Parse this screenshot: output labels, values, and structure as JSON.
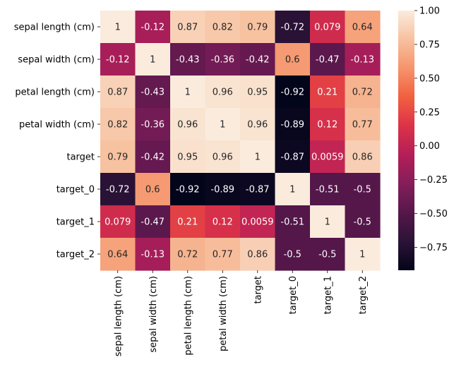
{
  "chart_data": {
    "type": "heatmap",
    "title": "",
    "xlabel": "",
    "ylabel": "",
    "rows": [
      "sepal length (cm)",
      "sepal width (cm)",
      "petal length (cm)",
      "petal width (cm)",
      "target",
      "target_0",
      "target_1",
      "target_2"
    ],
    "columns": [
      "sepal length (cm)",
      "sepal width (cm)",
      "petal length (cm)",
      "petal width (cm)",
      "target",
      "target_0",
      "target_1",
      "target_2"
    ],
    "values": [
      [
        1,
        -0.12,
        0.87,
        0.82,
        0.79,
        -0.72,
        0.079,
        0.64
      ],
      [
        -0.12,
        1,
        -0.43,
        -0.36,
        -0.42,
        0.6,
        -0.47,
        -0.13
      ],
      [
        0.87,
        -0.43,
        1,
        0.96,
        0.95,
        -0.92,
        0.21,
        0.72
      ],
      [
        0.82,
        -0.36,
        0.96,
        1,
        0.96,
        -0.89,
        0.12,
        0.77
      ],
      [
        0.79,
        -0.42,
        0.95,
        0.96,
        1,
        -0.87,
        0.0059,
        0.86
      ],
      [
        -0.72,
        0.6,
        -0.92,
        -0.89,
        -0.87,
        1,
        -0.51,
        -0.5
      ],
      [
        0.079,
        -0.47,
        0.21,
        0.12,
        0.0059,
        -0.51,
        1,
        -0.5
      ],
      [
        0.64,
        -0.13,
        0.72,
        0.77,
        0.86,
        -0.5,
        -0.5,
        1
      ]
    ],
    "labels": [
      [
        "1",
        "-0.12",
        "0.87",
        "0.82",
        "0.79",
        "-0.72",
        "0.079",
        "0.64"
      ],
      [
        "-0.12",
        "1",
        "-0.43",
        "-0.36",
        "-0.42",
        "0.6",
        "-0.47",
        "-0.13"
      ],
      [
        "0.87",
        "-0.43",
        "1",
        "0.96",
        "0.95",
        "-0.92",
        "0.21",
        "0.72"
      ],
      [
        "0.82",
        "-0.36",
        "0.96",
        "1",
        "0.96",
        "-0.89",
        "0.12",
        "0.77"
      ],
      [
        "0.79",
        "-0.42",
        "0.95",
        "0.96",
        "1",
        "-0.87",
        "0.0059",
        "0.86"
      ],
      [
        "-0.72",
        "0.6",
        "-0.92",
        "-0.89",
        "-0.87",
        "1",
        "-0.51",
        "-0.5"
      ],
      [
        "0.079",
        "-0.47",
        "0.21",
        "0.12",
        "0.0059",
        "-0.51",
        "1",
        "-0.5"
      ],
      [
        "0.64",
        "-0.13",
        "0.72",
        "0.77",
        "0.86",
        "-0.5",
        "-0.5",
        "1"
      ]
    ],
    "colorbar": {
      "vmin": -0.92,
      "vmax": 1.0,
      "ticks": [
        1.0,
        0.75,
        0.5,
        0.25,
        0.0,
        -0.25,
        -0.5,
        -0.75
      ],
      "tick_labels": [
        "1.00",
        "0.75",
        "0.50",
        "0.25",
        "0.00",
        "−0.25",
        "−0.50",
        "−0.75"
      ],
      "colormap": "rocket",
      "colormap_stops": [
        "#03051a",
        "#2b1337",
        "#56174b",
        "#841e5a",
        "#b41e58",
        "#dc3248",
        "#f1603f",
        "#f5946b",
        "#f7c19f",
        "#faebdd"
      ]
    }
  }
}
